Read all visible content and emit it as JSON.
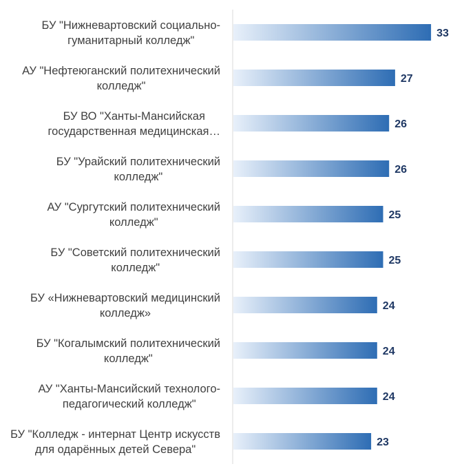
{
  "chart_data": {
    "type": "bar",
    "orientation": "horizontal",
    "categories": [
      [
        "БУ \"Нижневартовский социально-",
        "гуманитарный колледж\""
      ],
      [
        "АУ \"Нефтеюганский политехнический",
        "колледж\""
      ],
      [
        "БУ ВО \"Ханты-Мансийская",
        "государственная медицинская…"
      ],
      [
        "БУ  \"Урайский политехнический",
        "колледж\""
      ],
      [
        "АУ \"Сургутский политехнический",
        "колледж\""
      ],
      [
        "БУ \"Советский политехнический",
        "колледж\""
      ],
      [
        "БУ «Нижневартовский медицинский",
        "колледж»"
      ],
      [
        "БУ \"Когалымский политехнический",
        "колледж\""
      ],
      [
        "АУ \"Ханты-Мансийский технолого-",
        "педагогический колледж\""
      ],
      [
        "БУ \"Колледж - интернат Центр искусств",
        "для одарённых детей Севера\""
      ]
    ],
    "values": [
      33,
      27,
      26,
      26,
      25,
      25,
      24,
      24,
      24,
      23
    ],
    "xlim": [
      0,
      36
    ],
    "grid": false,
    "legend": "none",
    "colors": {
      "bar_start": "#e8f0fa",
      "bar_end": "#2e6db4",
      "value_label": "#1f3864",
      "category_label": "#404040",
      "axis": "#d9d9d9"
    }
  }
}
